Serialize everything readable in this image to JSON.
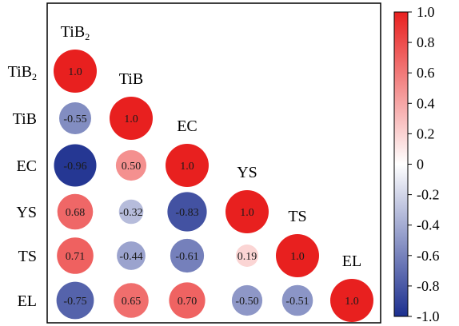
{
  "chart_data": {
    "type": "heatmap",
    "subtype": "lower-triangle correlation circle plot",
    "variables": [
      {
        "id": "TiB2",
        "base": "TiB",
        "sub": "2"
      },
      {
        "id": "TiB",
        "base": "TiB",
        "sub": ""
      },
      {
        "id": "EC",
        "base": "EC",
        "sub": ""
      },
      {
        "id": "YS",
        "base": "YS",
        "sub": ""
      },
      {
        "id": "TS",
        "base": "TS",
        "sub": ""
      },
      {
        "id": "EL",
        "base": "EL",
        "sub": ""
      }
    ],
    "matrix": [
      [
        1.0,
        null,
        null,
        null,
        null,
        null
      ],
      [
        -0.55,
        1.0,
        null,
        null,
        null,
        null
      ],
      [
        -0.96,
        0.5,
        1.0,
        null,
        null,
        null
      ],
      [
        0.68,
        -0.32,
        -0.83,
        1.0,
        null,
        null
      ],
      [
        0.71,
        -0.44,
        -0.61,
        0.19,
        1.0,
        null
      ],
      [
        -0.75,
        0.65,
        0.7,
        -0.5,
        -0.51,
        1.0
      ]
    ],
    "value_labels": [
      [
        "1.0"
      ],
      [
        "-0.55",
        "1.0"
      ],
      [
        "-0.96",
        "0.50",
        "1.0"
      ],
      [
        "0.68",
        "-0.32",
        "-0.83",
        "1.0"
      ],
      [
        "0.71",
        "-0.44",
        "-0.61",
        "0.19",
        "1.0"
      ],
      [
        "-0.75",
        "0.65",
        "0.70",
        "-0.50",
        "-0.51",
        "1.0"
      ]
    ],
    "colorbar": {
      "range": [
        -1.0,
        1.0
      ],
      "ticks": [
        1.0,
        0.8,
        0.6,
        0.4,
        0.2,
        0,
        -0.2,
        -0.4,
        -0.6,
        -0.8,
        -1.0
      ],
      "tick_labels": [
        "1.0",
        "0.8",
        "0.6",
        "0.4",
        "0.2",
        "0",
        "-0.2",
        "-0.4",
        "-0.6",
        "-0.8",
        "-1.0"
      ],
      "colors": {
        "negative": "#1c2f8f",
        "zero": "#ffffff",
        "positive": "#e8201f"
      }
    }
  }
}
